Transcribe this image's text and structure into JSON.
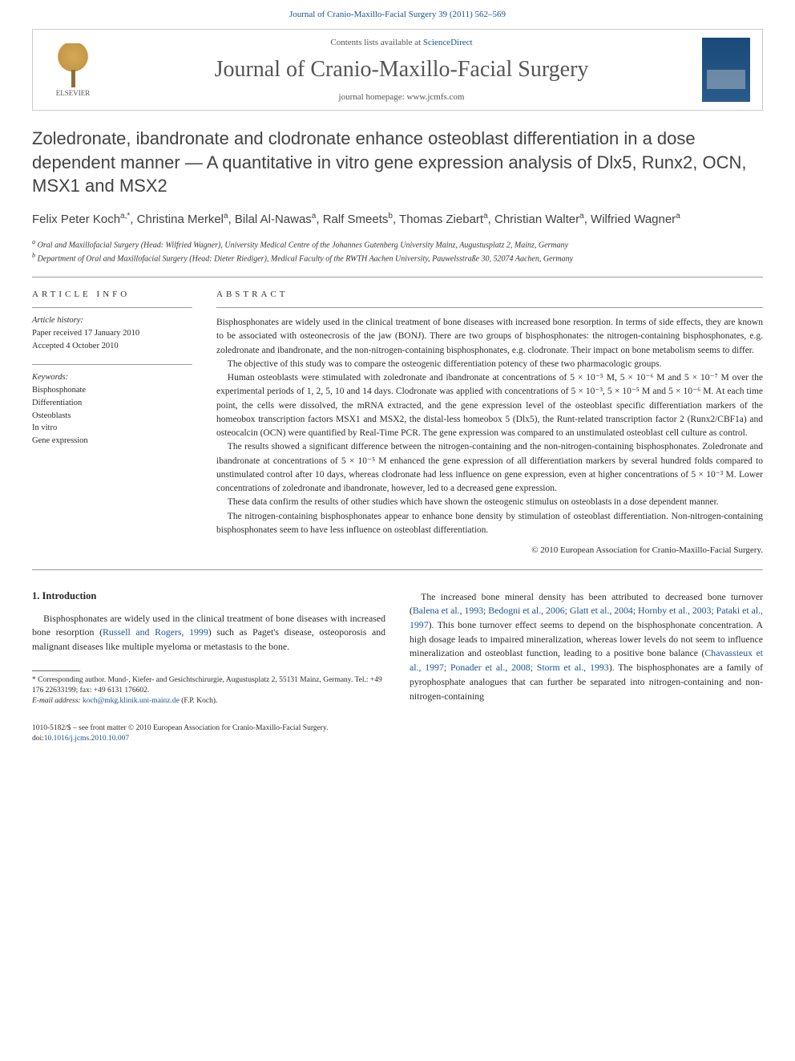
{
  "pageHeader": "Journal of Cranio-Maxillo-Facial Surgery 39 (2011) 562–569",
  "masthead": {
    "elsevier": "ELSEVIER",
    "contentsPrefix": "Contents lists available at ",
    "contentsLink": "ScienceDirect",
    "journalTitle": "Journal of Cranio-Maxillo-Facial Surgery",
    "homepagePrefix": "journal homepage: ",
    "homepageUrl": "www.jcmfs.com"
  },
  "title": "Zoledronate, ibandronate and clodronate enhance osteoblast differentiation in a dose dependent manner — A quantitative in vitro gene expression analysis of Dlx5, Runx2, OCN, MSX1 and MSX2",
  "authors": {
    "list": [
      {
        "name": "Felix Peter Koch",
        "affil": "a,",
        "corr": "*"
      },
      {
        "name": "Christina Merkel",
        "affil": "a"
      },
      {
        "name": "Bilal Al-Nawas",
        "affil": "a"
      },
      {
        "name": "Ralf Smeets",
        "affil": "b"
      },
      {
        "name": "Thomas Ziebart",
        "affil": "a"
      },
      {
        "name": "Christian Walter",
        "affil": "a"
      },
      {
        "name": "Wilfried Wagner",
        "affil": "a"
      }
    ]
  },
  "affiliations": {
    "a": "Oral and Maxillofacial Surgery (Head: Wilfried Wagner), University Medical Centre of the Johannes Gutenberg University Mainz, Augustusplatz 2, Mainz, Germany",
    "b": "Department of Oral and Maxillofacial Surgery (Head: Dieter Riediger), Medical Faculty of the RWTH Aachen University, Pauwelsstraße 30, 52074 Aachen, Germany"
  },
  "articleInfo": {
    "label": "ARTICLE INFO",
    "historyLabel": "Article history:",
    "received": "Paper received 17 January 2010",
    "accepted": "Accepted 4 October 2010",
    "keywordsLabel": "Keywords:",
    "keywords": [
      "Bisphosphonate",
      "Differentiation",
      "Osteoblasts",
      "In vitro",
      "Gene expression"
    ]
  },
  "abstract": {
    "label": "ABSTRACT",
    "paragraphs": [
      "Bisphosphonates are widely used in the clinical treatment of bone diseases with increased bone resorption. In terms of side effects, they are known to be associated with osteonecrosis of the jaw (BONJ). There are two groups of bisphosphonates: the nitrogen-containing bisphosphonates, e.g. zoledronate and ibandronate, and the non-nitrogen-containing bisphosphonates, e.g. clodronate. Their impact on bone metabolism seems to differ.",
      "The objective of this study was to compare the osteogenic differentiation potency of these two pharmacologic groups.",
      "Human osteoblasts were stimulated with zoledronate and ibandronate at concentrations of 5 × 10⁻⁵ M, 5 × 10⁻⁶ M and 5 × 10⁻⁷ M over the experimental periods of 1, 2, 5, 10 and 14 days. Clodronate was applied with concentrations of 5 × 10⁻³, 5 × 10⁻⁵ M and 5 × 10⁻⁶ M. At each time point, the cells were dissolved, the mRNA extracted, and the gene expression level of the osteoblast specific differentiation markers of the homeobox transcription factors MSX1 and MSX2, the distal-less homeobox 5 (Dlx5), the Runt-related transcription factor 2 (Runx2/CBF1a) and osteocalcin (OCN) were quantified by Real-Time PCR. The gene expression was compared to an unstimulated osteoblast cell culture as control.",
      "The results showed a significant difference between the nitrogen-containing and the non-nitrogen-containing bisphosphonates. Zoledronate and ibandronate at concentrations of 5 × 10⁻⁵ M enhanced the gene expression of all differentiation markers by several hundred folds compared to unstimulated control after 10 days, whereas clodronate had less influence on gene expression, even at higher concentrations of 5 × 10⁻³ M. Lower concentrations of zoledronate and ibandronate, however, led to a decreased gene expression.",
      "These data confirm the results of other studies which have shown the osteogenic stimulus on osteoblasts in a dose dependent manner.",
      "The nitrogen-containing bisphosphonates appear to enhance bone density by stimulation of osteoblast differentiation. Non-nitrogen-containing bisphosphonates seem to have less influence on osteoblast differentiation."
    ],
    "copyright": "© 2010 European Association for Cranio-Maxillo-Facial Surgery."
  },
  "body": {
    "section1": {
      "heading": "1. Introduction",
      "p1_pre": "Bisphosphonates are widely used in the clinical treatment of bone diseases with increased bone resorption (",
      "p1_ref": "Russell and Rogers, 1999",
      "p1_post": ") such as Paget's disease, osteoporosis and malignant diseases like multiple myeloma or metastasis to the bone.",
      "p2_pre": "The increased bone mineral density has been attributed to decreased bone turnover (",
      "p2_ref1": "Balena et al., 1993; Bedogni et al., 2006; Glatt et al., 2004; Hornby et al., 2003; Pataki et al., 1997",
      "p2_mid": "). This bone turnover effect seems to depend on the bisphosphonate concentration. A high dosage leads to impaired mineralization, whereas lower levels do not seem to influence mineralization and osteoblast function, leading to a positive bone balance (",
      "p2_ref2": "Chavassieux et al., 1997; Ponader et al., 2008; Storm et al., 1993",
      "p2_post": "). The bisphosphonates are a family of pyrophosphate analogues that can further be separated into nitrogen-containing and non-nitrogen-containing"
    }
  },
  "footnote": {
    "corr": "* Corresponding author. Mund-, Kiefer- and Gesichtschirurgie, Augustusplatz 2, 55131 Mainz, Germany. Tel.: +49 176 22633199; fax: +49 6131 176602.",
    "emailLabel": "E-mail address: ",
    "email": "koch@mkg.klinik.uni-mainz.de",
    "emailWho": " (F.P. Koch)."
  },
  "footer": {
    "line1": "1010-5182/$ – see front matter © 2010 European Association for Cranio-Maxillo-Facial Surgery.",
    "doiPrefix": "doi:",
    "doi": "10.1016/j.jcms.2010.10.007"
  }
}
